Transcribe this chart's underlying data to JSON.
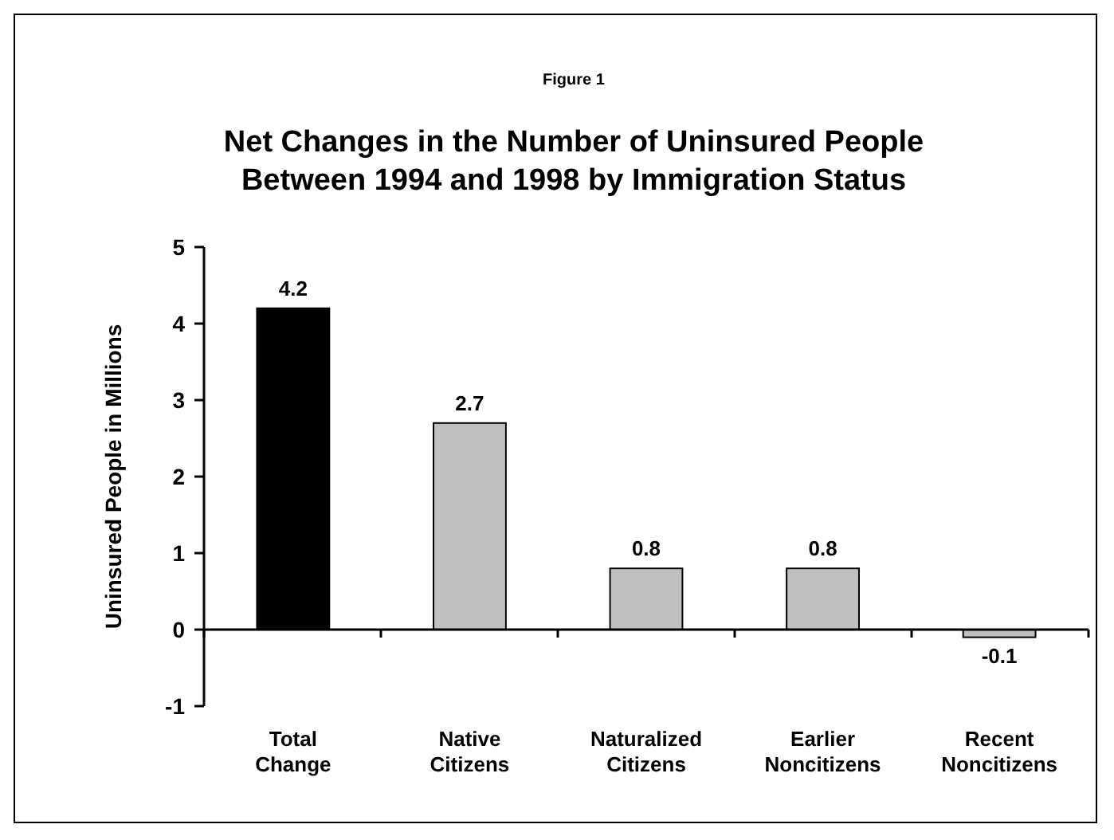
{
  "chart_data": {
    "type": "bar",
    "subtitle": "Figure 1",
    "title": "Net Changes in the Number of Uninsured People\nBetween 1994 and 1998 by Immigration Status",
    "ylabel": "Uninsured People in Millions",
    "categories": [
      "Total Change",
      "Native Citizens",
      "Naturalized Citizens",
      "Earlier Noncitizens",
      "Recent Noncitizens"
    ],
    "values": [
      4.2,
      2.7,
      0.8,
      0.8,
      -0.1
    ],
    "colors": [
      "#000000",
      "#c0c0c0",
      "#c0c0c0",
      "#c0c0c0",
      "#c0c0c0"
    ],
    "ylim": [
      -1,
      5
    ],
    "yticks": [
      -1,
      0,
      1,
      2,
      3,
      4,
      5
    ],
    "data_labels": true
  }
}
